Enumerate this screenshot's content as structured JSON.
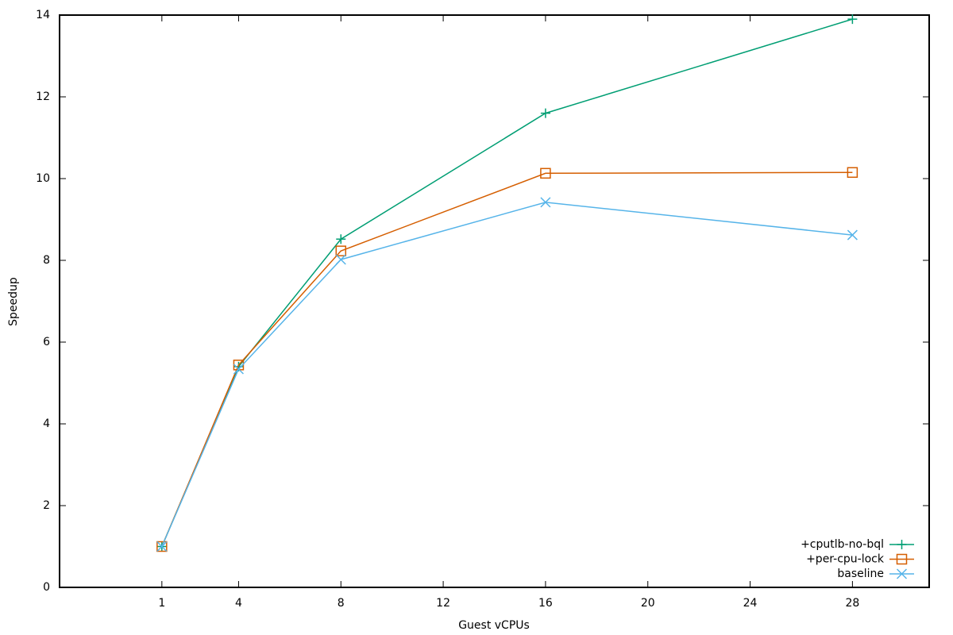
{
  "chart_data": {
    "type": "line",
    "xlabel": "Guest vCPUs",
    "ylabel": "Speedup",
    "x": [
      1,
      4,
      8,
      16,
      28
    ],
    "series": [
      {
        "name": "+cputlb-no-bql",
        "color": "#009e73",
        "marker": "plus",
        "values": [
          1.0,
          5.4,
          8.52,
          11.6,
          13.9
        ]
      },
      {
        "name": "+per-cpu-lock",
        "color": "#d55e00",
        "marker": "square",
        "values": [
          1.0,
          5.44,
          8.23,
          10.13,
          10.15
        ]
      },
      {
        "name": "baseline",
        "color": "#56b4e9",
        "marker": "cross",
        "values": [
          1.0,
          5.34,
          8.02,
          9.42,
          8.62
        ]
      }
    ],
    "xlim": [
      -3,
      31
    ],
    "xticks": [
      1,
      4,
      8,
      12,
      16,
      20,
      24,
      28
    ],
    "ylim": [
      0,
      14
    ],
    "yticks": [
      0,
      2,
      4,
      6,
      8,
      10,
      12,
      14
    ],
    "legend": "lower right",
    "grid": false
  }
}
